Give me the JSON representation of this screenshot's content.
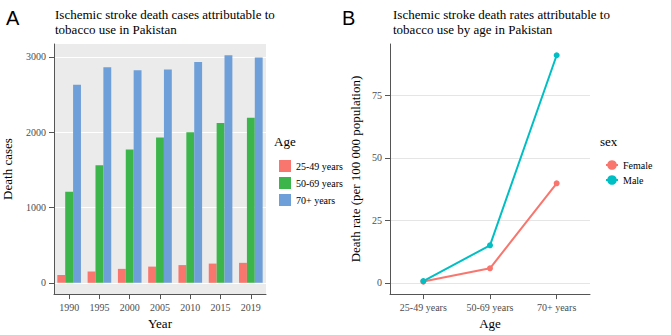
{
  "chart_data": [
    {
      "type": "bar",
      "title": "Ischemic stroke death cases attributable to tobacco use in Pakistan",
      "annotations": [
        "A"
      ],
      "x_label": "Year",
      "y_label": "Death cases",
      "legend_title": "Age",
      "categories": [
        "1990",
        "1995",
        "2000",
        "2005",
        "2010",
        "2015",
        "2019"
      ],
      "series": [
        {
          "name": "25-49 years",
          "color": "#F8766D",
          "values": [
            105,
            150,
            185,
            215,
            235,
            255,
            265
          ]
        },
        {
          "name": "50-69 years",
          "color": "#3CB54A",
          "values": [
            1210,
            1560,
            1770,
            1930,
            2000,
            2120,
            2190
          ]
        },
        {
          "name": "70+ years",
          "color": "#6F9FD8",
          "values": [
            2630,
            2860,
            2820,
            2830,
            2930,
            3020,
            2990
          ]
        }
      ],
      "ylim": [
        -150,
        3170
      ],
      "yticks": [
        0,
        1000,
        2000,
        3000
      ],
      "grid": true,
      "legend": "right"
    },
    {
      "type": "line",
      "title": "Ischemic stroke death rates attributable to tobacco use by age in Pakistan",
      "annotations": [
        "B"
      ],
      "x_label": "Age",
      "y_label": "Death rate (per 100 000 population)",
      "legend_title": "sex",
      "categories": [
        "25-49 years",
        "50-69 years",
        "70+ years"
      ],
      "series": [
        {
          "name": "Female",
          "color": "#F8766D",
          "values": [
            0.5,
            5.8,
            39.8
          ]
        },
        {
          "name": "Male",
          "color": "#00BFC4",
          "values": [
            0.7,
            15,
            91
          ]
        }
      ],
      "ylim": [
        -4.5,
        95.5
      ],
      "yticks": [
        0,
        25,
        50,
        75
      ],
      "marker": "circle",
      "grid": true,
      "legend": "right"
    }
  ]
}
